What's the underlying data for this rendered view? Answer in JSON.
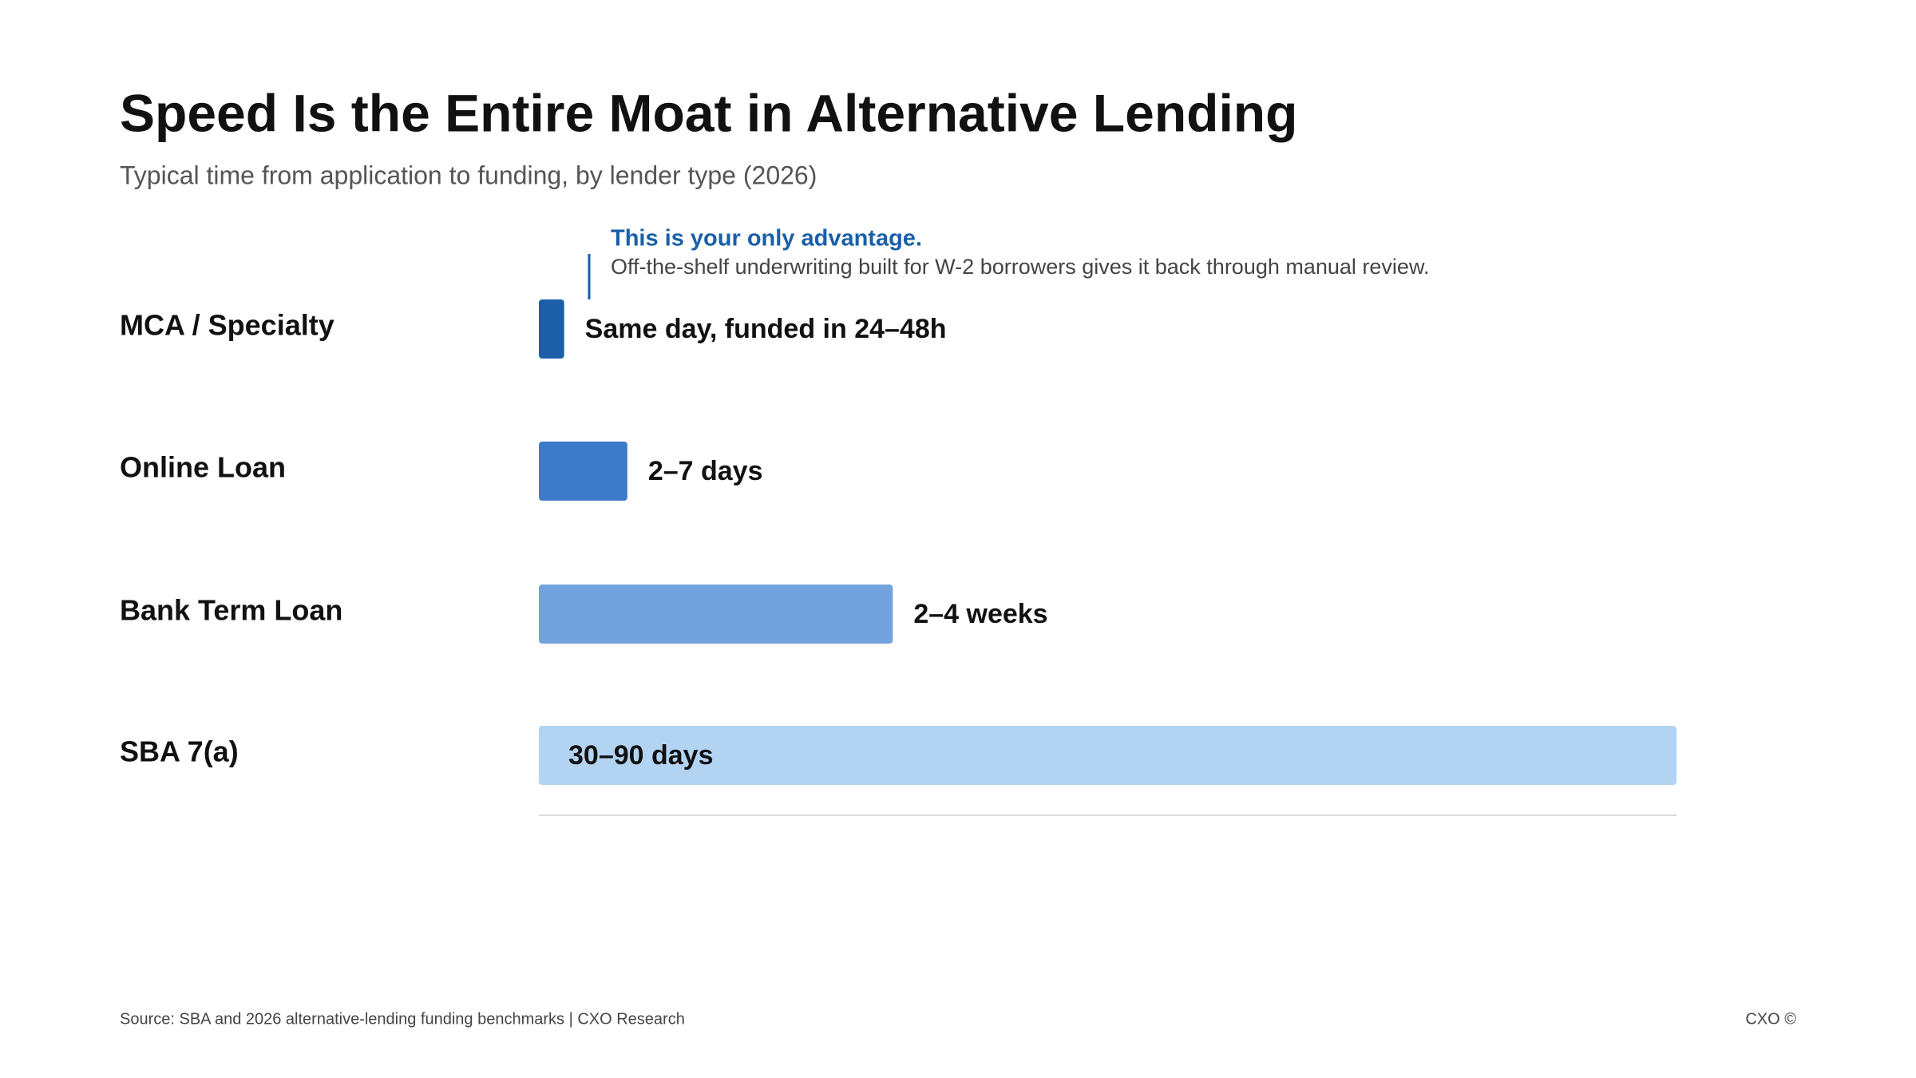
{
  "chart_data": {
    "type": "hbar",
    "title": "Speed Is the Entire Moat in Alternative Lending",
    "subtitle": "Typical time from application to funding, by lender type (2026)",
    "categories": [
      "MCA / Specialty",
      "Online Loan",
      "Bank Term Loan",
      "SBA 7(a)"
    ],
    "values": [
      2,
      7,
      28,
      90
    ],
    "value_labels": [
      "Same day, funded in 24–48h",
      "2–7 days",
      "2–4 weeks",
      "30–90 days"
    ],
    "colors": [
      "#1a5fa8",
      "#3d7ac9",
      "#72a3de",
      "#b3d3f2"
    ],
    "xlim": [
      0,
      90
    ],
    "annotation": {
      "title": "This is your only advantage.",
      "text": "Off-the-shelf underwriting built for W-2 borrowers gives it back through manual review."
    },
    "source": "Source: SBA and 2026 alternative-lending funding benchmarks | CXO Research",
    "brand": "CXO ©"
  }
}
